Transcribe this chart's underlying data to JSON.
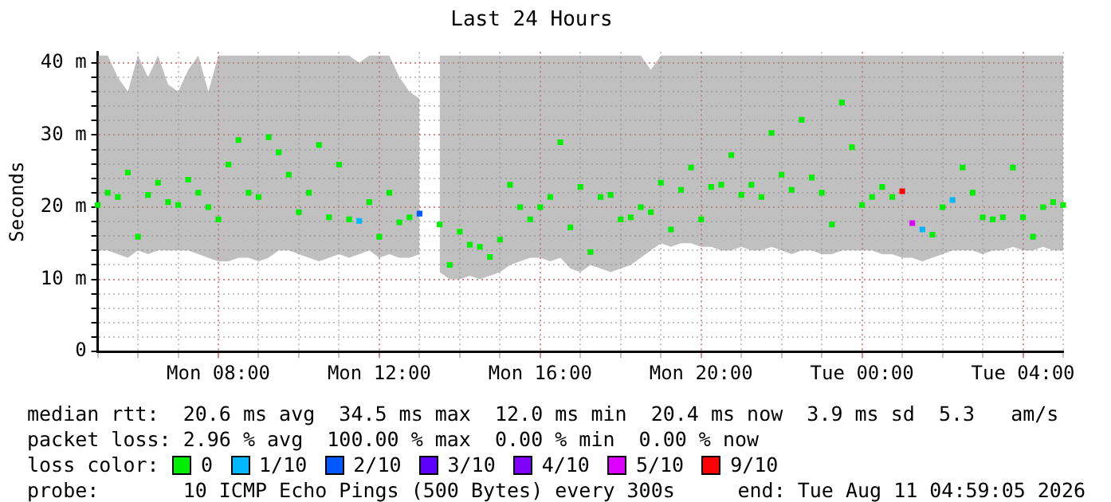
{
  "chart_data": {
    "type": "scatter",
    "title": "Last 24 Hours",
    "ylabel": "Seconds",
    "legend_title": "loss color:",
    "legend": "bottom",
    "marker": "square",
    "grid": true,
    "categories": [
      null,
      null,
      null,
      null,
      null,
      null,
      null,
      null,
      null,
      null,
      null,
      null,
      "Mon 08:00",
      null,
      null,
      null,
      null,
      null,
      null,
      null,
      null,
      null,
      null,
      null,
      null,
      null,
      null,
      null,
      "Mon 12:00",
      null,
      null,
      null,
      null,
      null,
      null,
      null,
      null,
      null,
      null,
      null,
      null,
      null,
      null,
      null,
      "Mon 16:00",
      null,
      null,
      null,
      null,
      null,
      null,
      null,
      null,
      null,
      null,
      null,
      null,
      null,
      null,
      null,
      "Mon 20:00",
      null,
      null,
      null,
      null,
      null,
      null,
      null,
      null,
      null,
      null,
      null,
      null,
      null,
      null,
      null,
      "Tue 00:00",
      null,
      null,
      null,
      null,
      null,
      null,
      null,
      null,
      null,
      null,
      null,
      null,
      null,
      null,
      null,
      "Tue 04:00",
      null,
      null,
      null,
      null
    ],
    "ylim": [
      0,
      41.5
    ],
    "yticks": [
      0,
      {
        "value": 2,
        "label": null
      },
      {
        "value": 4,
        "label": null
      },
      {
        "value": 6,
        "label": null
      },
      {
        "value": 8,
        "label": null
      },
      {
        "value": 10,
        "label": "10 m"
      },
      {
        "value": 12,
        "label": null
      },
      {
        "value": 14,
        "label": null
      },
      {
        "value": 16,
        "label": null
      },
      {
        "value": 18,
        "label": null
      },
      {
        "value": 20,
        "label": "20 m"
      },
      {
        "value": 22,
        "label": null
      },
      {
        "value": 24,
        "label": null
      },
      {
        "value": 26,
        "label": null
      },
      {
        "value": 28,
        "label": null
      },
      {
        "value": 30,
        "label": "30 m"
      },
      {
        "value": 32,
        "label": null
      },
      {
        "value": 34,
        "label": null
      },
      {
        "value": 36,
        "label": null
      },
      {
        "value": 38,
        "label": null
      },
      {
        "value": 40,
        "label": "40 m"
      }
    ],
    "series": [
      {
        "name": "0",
        "color": "#00ee00",
        "values": [
          20.3,
          22,
          21.4,
          24.8,
          15.9,
          21.7,
          23.4,
          20.7,
          20.3,
          23.8,
          22,
          20,
          18.3,
          25.9,
          29.3,
          22,
          21.4,
          29.7,
          27.6,
          24.5,
          19.3,
          22,
          28.6,
          18.6,
          25.9,
          18.3,
          null,
          20.7,
          15.9,
          22,
          17.9,
          18.6,
          null,
          null,
          17.6,
          12.0,
          16.6,
          14.8,
          14.5,
          13.1,
          15.5,
          23.1,
          20,
          18.3,
          20,
          21.4,
          29,
          17.2,
          22.8,
          13.8,
          21.4,
          21.7,
          18.3,
          18.6,
          20,
          19.3,
          23.4,
          16.9,
          22.4,
          25.5,
          18.3,
          22.8,
          23.1,
          27.2,
          21.7,
          23.1,
          21.4,
          30.3,
          24.5,
          22.4,
          32.1,
          24.1,
          22,
          17.6,
          34.5,
          28.3,
          20.3,
          21.4,
          22.8,
          21.4,
          null,
          null,
          null,
          16.2,
          20,
          null,
          25.5,
          22,
          18.6,
          18.3,
          18.6,
          25.5,
          18.6,
          15.9,
          20,
          20.7,
          20.3
        ],
        "lower": [
          14,
          14,
          13.5,
          13,
          14,
          13.5,
          14,
          14,
          14,
          14,
          13.5,
          13,
          12.5,
          12.5,
          13,
          13,
          12.5,
          13,
          14,
          14,
          13.5,
          13,
          12.5,
          13,
          13.5,
          13,
          13.5,
          14,
          13,
          13.5,
          13,
          13,
          13.5,
          null,
          11,
          10,
          10,
          10.5,
          10,
          10.5,
          11,
          12,
          12.5,
          13,
          13,
          12.5,
          13,
          11.5,
          11,
          12,
          11.5,
          11,
          11.5,
          12,
          13,
          14,
          15,
          14.5,
          15,
          15,
          14.5,
          14.5,
          14,
          14,
          14.5,
          14,
          14,
          14.5,
          14,
          13.5,
          14,
          14,
          13.5,
          13.5,
          14,
          14,
          14,
          14,
          13.5,
          13.5,
          13,
          13,
          12.5,
          13,
          13.5,
          14,
          14,
          14,
          13.5,
          14,
          14,
          14.5,
          14,
          14,
          14.5,
          14,
          14
        ],
        "upper": [
          41,
          41,
          38,
          36,
          41,
          38,
          41,
          37,
          36,
          39,
          41,
          36,
          41,
          41,
          41,
          41,
          41,
          41,
          41,
          41,
          41,
          41,
          41,
          41,
          41,
          41,
          40,
          41,
          41,
          41,
          38,
          36,
          35,
          null,
          41,
          41,
          41,
          41,
          41,
          41,
          41,
          41,
          41,
          41,
          41,
          41,
          41,
          41,
          41,
          41,
          41,
          41,
          41,
          41,
          41,
          39,
          41,
          41,
          41,
          41,
          41,
          41,
          41,
          41,
          41,
          41,
          41,
          41,
          41,
          41,
          41,
          41,
          41,
          41,
          41,
          41,
          41,
          41,
          41,
          41,
          41,
          41,
          41,
          41,
          41,
          41,
          41,
          41,
          41,
          41,
          41,
          41,
          41,
          41,
          41,
          41,
          41
        ]
      },
      {
        "name": "1/10",
        "color": "#00b8ff",
        "values": [
          null,
          null,
          null,
          null,
          null,
          null,
          null,
          null,
          null,
          null,
          null,
          null,
          null,
          null,
          null,
          null,
          null,
          null,
          null,
          null,
          null,
          null,
          null,
          null,
          null,
          null,
          18.1,
          null,
          null,
          null,
          null,
          null,
          null,
          null,
          null,
          null,
          null,
          null,
          null,
          null,
          null,
          null,
          null,
          null,
          null,
          null,
          null,
          null,
          null,
          null,
          null,
          null,
          null,
          null,
          null,
          null,
          null,
          null,
          null,
          null,
          null,
          null,
          null,
          null,
          null,
          null,
          null,
          null,
          null,
          null,
          null,
          null,
          null,
          null,
          null,
          null,
          null,
          null,
          null,
          null,
          null,
          null,
          16.9,
          null,
          null,
          21.0,
          null,
          null,
          null,
          null,
          null,
          null,
          null,
          null,
          null,
          null,
          null
        ]
      },
      {
        "name": "2/10",
        "color": "#0059ff",
        "values": [
          null,
          null,
          null,
          null,
          null,
          null,
          null,
          null,
          null,
          null,
          null,
          null,
          null,
          null,
          null,
          null,
          null,
          null,
          null,
          null,
          null,
          null,
          null,
          null,
          null,
          null,
          null,
          null,
          null,
          null,
          null,
          null,
          19.1,
          null,
          null,
          null,
          null,
          null,
          null,
          null,
          null,
          null,
          null,
          null,
          null,
          null,
          null,
          null,
          null,
          null,
          null,
          null,
          null,
          null,
          null,
          null,
          null,
          null,
          null,
          null,
          null,
          null,
          null,
          null,
          null,
          null,
          null,
          null,
          null,
          null,
          null,
          null,
          null,
          null,
          null,
          null,
          null,
          null,
          null,
          null,
          null,
          null,
          null,
          null,
          null,
          null,
          null,
          null,
          null,
          null,
          null,
          null,
          null,
          null,
          null,
          null,
          null
        ]
      },
      {
        "name": "3/10",
        "color": "#5e00ff",
        "values": [
          null,
          null,
          null,
          null,
          null,
          null,
          null,
          null,
          null,
          null,
          null,
          null,
          null,
          null,
          null,
          null,
          null,
          null,
          null,
          null,
          null,
          null,
          null,
          null,
          null,
          null,
          null,
          null,
          null,
          null,
          null,
          null,
          null,
          null,
          null,
          null,
          null,
          null,
          null,
          null,
          null,
          null,
          null,
          null,
          null,
          null,
          null,
          null,
          null,
          null,
          null,
          null,
          null,
          null,
          null,
          null,
          null,
          null,
          null,
          null,
          null,
          null,
          null,
          null,
          null,
          null,
          null,
          null,
          null,
          null,
          null,
          null,
          null,
          null,
          null,
          null,
          null,
          null,
          null,
          null,
          null,
          null,
          null,
          null,
          null,
          null,
          null,
          null,
          null,
          null,
          null,
          null,
          null,
          null,
          null,
          null,
          null
        ]
      },
      {
        "name": "4/10",
        "color": "#7e00ff",
        "values": [
          null,
          null,
          null,
          null,
          null,
          null,
          null,
          null,
          null,
          null,
          null,
          null,
          null,
          null,
          null,
          null,
          null,
          null,
          null,
          null,
          null,
          null,
          null,
          null,
          null,
          null,
          null,
          null,
          null,
          null,
          null,
          null,
          null,
          null,
          null,
          null,
          null,
          null,
          null,
          null,
          null,
          null,
          null,
          null,
          null,
          null,
          null,
          null,
          null,
          null,
          null,
          null,
          null,
          null,
          null,
          null,
          null,
          null,
          null,
          null,
          null,
          null,
          null,
          null,
          null,
          null,
          null,
          null,
          null,
          null,
          null,
          null,
          null,
          null,
          null,
          null,
          null,
          null,
          null,
          null,
          null,
          null,
          null,
          null,
          null,
          null,
          null,
          null,
          null,
          null,
          null,
          null,
          null,
          null,
          null,
          null,
          null
        ]
      },
      {
        "name": "5/10",
        "color": "#dd00ff",
        "values": [
          null,
          null,
          null,
          null,
          null,
          null,
          null,
          null,
          null,
          null,
          null,
          null,
          null,
          null,
          null,
          null,
          null,
          null,
          null,
          null,
          null,
          null,
          null,
          null,
          null,
          null,
          null,
          null,
          null,
          null,
          null,
          null,
          null,
          null,
          null,
          null,
          null,
          null,
          null,
          null,
          null,
          null,
          null,
          null,
          null,
          null,
          null,
          null,
          null,
          null,
          null,
          null,
          null,
          null,
          null,
          null,
          null,
          null,
          null,
          null,
          null,
          null,
          null,
          null,
          null,
          null,
          null,
          null,
          null,
          null,
          null,
          null,
          null,
          null,
          null,
          null,
          null,
          null,
          null,
          null,
          null,
          17.8,
          null,
          null,
          null,
          null,
          null,
          null,
          null,
          null,
          null,
          null,
          null,
          null,
          null,
          null,
          null
        ]
      },
      {
        "name": "9/10",
        "color": "#ff0000",
        "values": [
          null,
          null,
          null,
          null,
          null,
          null,
          null,
          null,
          null,
          null,
          null,
          null,
          null,
          null,
          null,
          null,
          null,
          null,
          null,
          null,
          null,
          null,
          null,
          null,
          null,
          null,
          null,
          null,
          null,
          null,
          null,
          null,
          null,
          null,
          null,
          null,
          null,
          null,
          null,
          null,
          null,
          null,
          null,
          null,
          null,
          null,
          null,
          null,
          null,
          null,
          null,
          null,
          null,
          null,
          null,
          null,
          null,
          null,
          null,
          null,
          null,
          null,
          null,
          null,
          null,
          null,
          null,
          null,
          null,
          null,
          null,
          null,
          null,
          null,
          null,
          null,
          null,
          null,
          null,
          null,
          22.2,
          null,
          null,
          null,
          null,
          null,
          null,
          null,
          null,
          null,
          null,
          null,
          null,
          null,
          null,
          null,
          null
        ]
      }
    ],
    "annotations": [
      "median rtt:  20.6 ms avg  34.5 ms max  12.0 ms min  20.4 ms now  3.9 ms sd  5.3   am/s",
      "packet loss: 2.96 % avg  100.00 % max  0.00 % min  0.00 % now",
      "probe:       10 ICMP Echo Pings (500 Bytes) every 300s",
      "end: Tue Aug 11 04:59:05 2026"
    ]
  }
}
